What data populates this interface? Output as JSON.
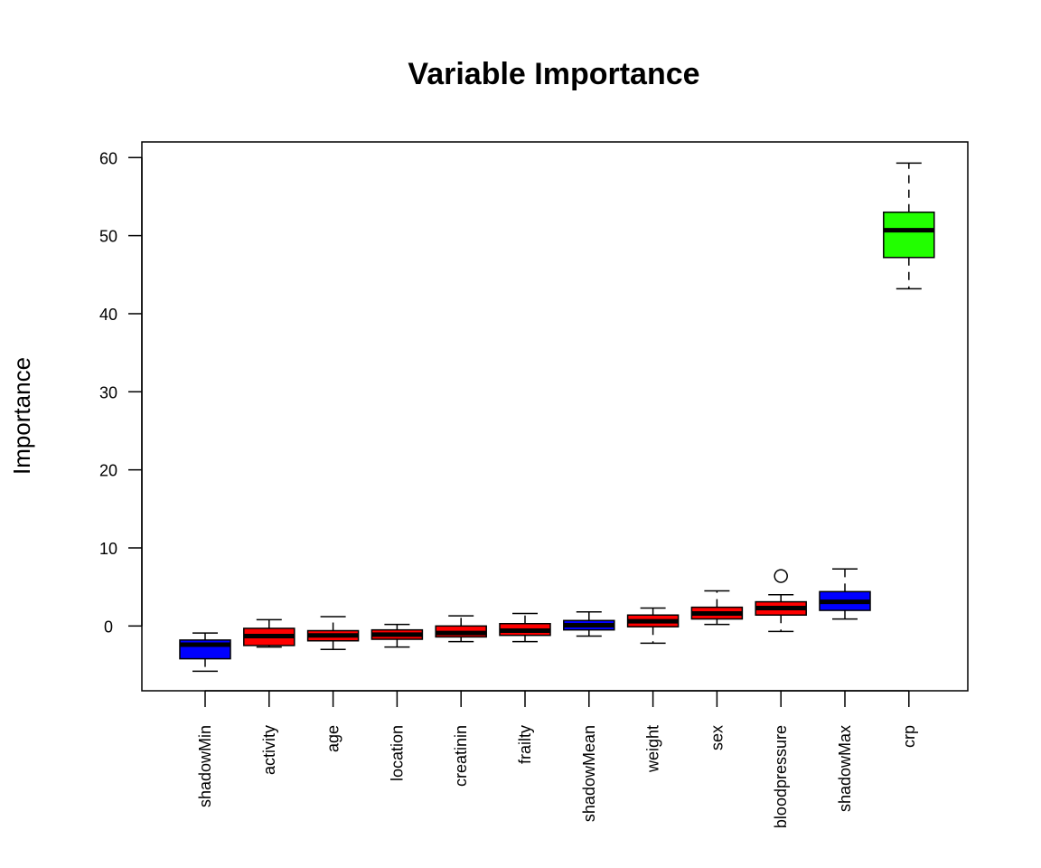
{
  "chart_data": {
    "type": "box",
    "title": "Variable Importance",
    "xlabel": "",
    "ylabel": "Importance",
    "ylim": [
      -8.3,
      62
    ],
    "yticks": [
      0,
      10,
      20,
      30,
      40,
      50,
      60
    ],
    "grid": false,
    "legend": "none",
    "colors": {
      "shadow": "#0000ff",
      "rejected": "#ff0000",
      "confirmed": "#22ff00"
    },
    "boxes": [
      {
        "label": "shadowMin",
        "group": "shadow",
        "min": -5.8,
        "q1": -4.2,
        "median": -2.4,
        "q3": -1.8,
        "max": -0.9,
        "outliers": []
      },
      {
        "label": "activity",
        "group": "rejected",
        "min": -2.7,
        "q1": -2.5,
        "median": -1.3,
        "q3": -0.3,
        "max": 0.8,
        "outliers": []
      },
      {
        "label": "age",
        "group": "rejected",
        "min": -3.0,
        "q1": -1.9,
        "median": -1.2,
        "q3": -0.6,
        "max": 1.2,
        "outliers": []
      },
      {
        "label": "location",
        "group": "rejected",
        "min": -2.7,
        "q1": -1.7,
        "median": -1.1,
        "q3": -0.5,
        "max": 0.2,
        "outliers": []
      },
      {
        "label": "creatinin",
        "group": "rejected",
        "min": -2.0,
        "q1": -1.4,
        "median": -0.9,
        "q3": 0.0,
        "max": 1.3,
        "outliers": []
      },
      {
        "label": "frailty",
        "group": "rejected",
        "min": -2.0,
        "q1": -1.2,
        "median": -0.6,
        "q3": 0.3,
        "max": 1.6,
        "outliers": []
      },
      {
        "label": "shadowMean",
        "group": "shadow",
        "min": -1.3,
        "q1": -0.5,
        "median": 0.1,
        "q3": 0.7,
        "max": 1.8,
        "outliers": []
      },
      {
        "label": "weight",
        "group": "rejected",
        "min": -2.2,
        "q1": -0.1,
        "median": 0.6,
        "q3": 1.4,
        "max": 2.3,
        "outliers": []
      },
      {
        "label": "sex",
        "group": "rejected",
        "min": 0.2,
        "q1": 0.9,
        "median": 1.6,
        "q3": 2.4,
        "max": 4.5,
        "outliers": []
      },
      {
        "label": "bloodpressure",
        "group": "rejected",
        "min": -0.7,
        "q1": 1.4,
        "median": 2.3,
        "q3": 3.1,
        "max": 4.0,
        "outliers": [
          6.4
        ]
      },
      {
        "label": "shadowMax",
        "group": "shadow",
        "min": 0.9,
        "q1": 2.0,
        "median": 3.1,
        "q3": 4.4,
        "max": 7.3,
        "outliers": []
      },
      {
        "label": "crp",
        "group": "confirmed",
        "min": 43.2,
        "q1": 47.2,
        "median": 50.7,
        "q3": 53.0,
        "max": 59.3,
        "outliers": []
      }
    ]
  }
}
